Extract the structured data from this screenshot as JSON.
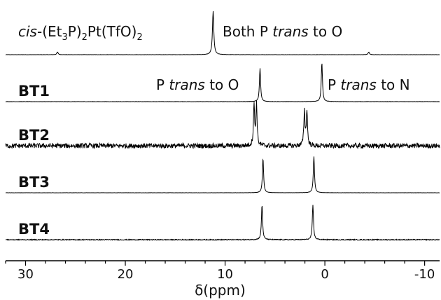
{
  "chart_data": {
    "type": "line",
    "xlabel": "δ(ppm)",
    "x_range": [
      32,
      -11.5
    ],
    "x_axis_reversed": true,
    "xticks": [
      30,
      20,
      10,
      0,
      -10
    ],
    "xtick_labels": [
      "30",
      "20",
      "10",
      "0",
      "-10"
    ],
    "grid": false,
    "legend": "none",
    "series": [
      {
        "name_parts": [
          "cis",
          "-(Et",
          "3",
          "P)",
          "2",
          "Pt(TfO)",
          "2"
        ],
        "peaks": [
          {
            "ppm": 11.2,
            "rel_height": 1.0,
            "width": 0.08
          },
          {
            "ppm": 26.8,
            "rel_height": 0.06,
            "width": 0.08
          },
          {
            "ppm": -4.4,
            "rel_height": 0.06,
            "width": 0.08
          }
        ],
        "noise": 0.003,
        "annotations": [
          {
            "parts": [
              "Both P ",
              "trans",
              " to O"
            ]
          }
        ]
      },
      {
        "name": "BT1",
        "peaks": [
          {
            "ppm": 6.5,
            "rel_height": 0.85,
            "width": 0.07
          },
          {
            "ppm": 0.3,
            "rel_height": 1.0,
            "width": 0.07
          }
        ],
        "noise": 0.004,
        "annotations": [
          {
            "parts": [
              "P ",
              "trans",
              " to O"
            ]
          },
          {
            "parts": [
              "P ",
              "trans",
              " to N"
            ]
          }
        ]
      },
      {
        "name": "BT2",
        "peaks": [
          {
            "ppm": 7.1,
            "rel_height": 1.0,
            "width": 0.07
          },
          {
            "ppm": 6.85,
            "rel_height": 1.0,
            "width": 0.07
          },
          {
            "ppm": 2.05,
            "rel_height": 0.85,
            "width": 0.07
          },
          {
            "ppm": 1.8,
            "rel_height": 0.85,
            "width": 0.07
          }
        ],
        "noise": 0.06,
        "annotations": []
      },
      {
        "name": "BT3",
        "peaks": [
          {
            "ppm": 6.2,
            "rel_height": 0.95,
            "width": 0.07
          },
          {
            "ppm": 1.1,
            "rel_height": 1.0,
            "width": 0.07
          }
        ],
        "noise": 0.003,
        "annotations": []
      },
      {
        "name": "BT4",
        "peaks": [
          {
            "ppm": 6.3,
            "rel_height": 1.0,
            "width": 0.07
          },
          {
            "ppm": 1.2,
            "rel_height": 1.0,
            "width": 0.07
          }
        ],
        "noise": 0.012,
        "annotations": []
      }
    ]
  }
}
